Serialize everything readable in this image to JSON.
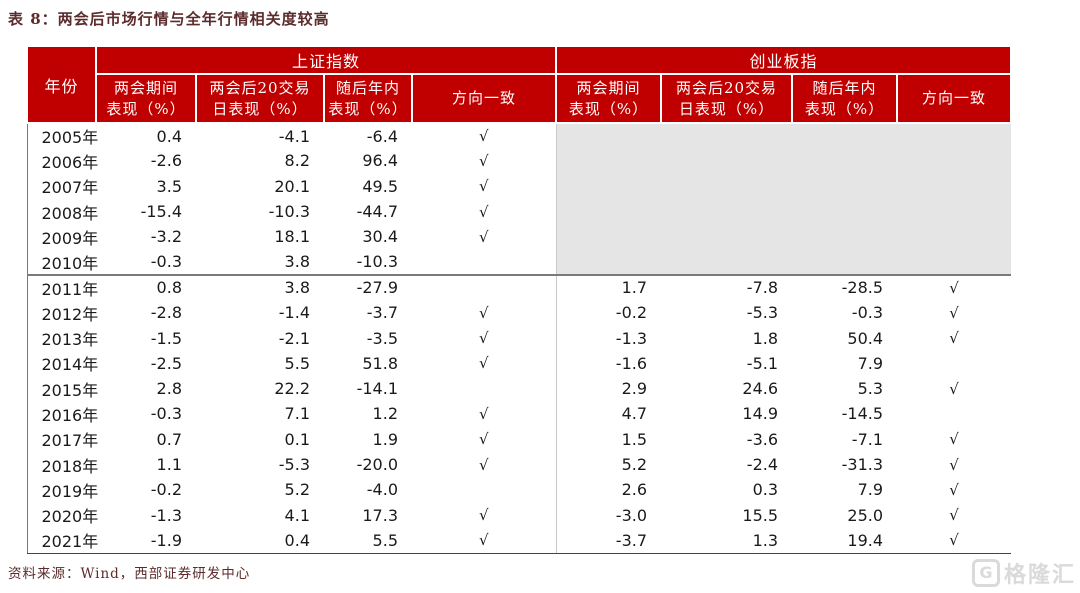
{
  "title": "表 8：两会后市场行情与全年行情相关度较高",
  "source": "资料来源：Wind，西部证券研发中心",
  "watermark": {
    "icon": "G",
    "text": "格隆汇"
  },
  "colors": {
    "header_red": "#c00000",
    "shaded_gray": "#e5e5e5",
    "title_maroon": "#5c2b2b",
    "body_text": "#1a1a1a"
  },
  "table": {
    "year_header": "年份",
    "groups": [
      {
        "label": "上证指数"
      },
      {
        "label": "创业板指"
      }
    ],
    "sub_headers": [
      {
        "line1": "两会期间",
        "line2": "表现（%）"
      },
      {
        "line1": "两会后20交易",
        "line2": "日表现（%）"
      },
      {
        "line1": "随后年内",
        "line2": "表现（%）"
      },
      {
        "line1": "方向一致",
        "line2": ""
      }
    ],
    "check_glyph": "√",
    "rows": [
      {
        "year": "2005年",
        "sh": [
          "0.4",
          "-4.1",
          "-6.4"
        ],
        "sh_dir": true,
        "cy": null
      },
      {
        "year": "2006年",
        "sh": [
          "-2.6",
          "8.2",
          "96.4"
        ],
        "sh_dir": true,
        "cy": null
      },
      {
        "year": "2007年",
        "sh": [
          "3.5",
          "20.1",
          "49.5"
        ],
        "sh_dir": true,
        "cy": null
      },
      {
        "year": "2008年",
        "sh": [
          "-15.4",
          "-10.3",
          "-44.7"
        ],
        "sh_dir": true,
        "cy": null
      },
      {
        "year": "2009年",
        "sh": [
          "-3.2",
          "18.1",
          "30.4"
        ],
        "sh_dir": true,
        "cy": null
      },
      {
        "year": "2010年",
        "sh": [
          "-0.3",
          "3.8",
          "-10.3"
        ],
        "sh_dir": false,
        "cy": null,
        "separator_below": true
      },
      {
        "year": "2011年",
        "sh": [
          "0.8",
          "3.8",
          "-27.9"
        ],
        "sh_dir": false,
        "cy": [
          "1.7",
          "-7.8",
          "-28.5"
        ],
        "cy_dir": true
      },
      {
        "year": "2012年",
        "sh": [
          "-2.8",
          "-1.4",
          "-3.7"
        ],
        "sh_dir": true,
        "cy": [
          "-0.2",
          "-5.3",
          "-0.3"
        ],
        "cy_dir": true
      },
      {
        "year": "2013年",
        "sh": [
          "-1.5",
          "-2.1",
          "-3.5"
        ],
        "sh_dir": true,
        "cy": [
          "-1.3",
          "1.8",
          "50.4"
        ],
        "cy_dir": true
      },
      {
        "year": "2014年",
        "sh": [
          "-2.5",
          "5.5",
          "51.8"
        ],
        "sh_dir": true,
        "cy": [
          "-1.6",
          "-5.1",
          "7.9"
        ],
        "cy_dir": false
      },
      {
        "year": "2015年",
        "sh": [
          "2.8",
          "22.2",
          "-14.1"
        ],
        "sh_dir": false,
        "cy": [
          "2.9",
          "24.6",
          "5.3"
        ],
        "cy_dir": true
      },
      {
        "year": "2016年",
        "sh": [
          "-0.3",
          "7.1",
          "1.2"
        ],
        "sh_dir": true,
        "cy": [
          "4.7",
          "14.9",
          "-14.5"
        ],
        "cy_dir": false
      },
      {
        "year": "2017年",
        "sh": [
          "0.7",
          "0.1",
          "1.9"
        ],
        "sh_dir": true,
        "cy": [
          "1.5",
          "-3.6",
          "-7.1"
        ],
        "cy_dir": true
      },
      {
        "year": "2018年",
        "sh": [
          "1.1",
          "-5.3",
          "-20.0"
        ],
        "sh_dir": true,
        "cy": [
          "5.2",
          "-2.4",
          "-31.3"
        ],
        "cy_dir": true
      },
      {
        "year": "2019年",
        "sh": [
          "-0.2",
          "5.2",
          "-4.0"
        ],
        "sh_dir": false,
        "cy": [
          "2.6",
          "0.3",
          "7.9"
        ],
        "cy_dir": true
      },
      {
        "year": "2020年",
        "sh": [
          "-1.3",
          "4.1",
          "17.3"
        ],
        "sh_dir": true,
        "cy": [
          "-3.0",
          "15.5",
          "25.0"
        ],
        "cy_dir": true
      },
      {
        "year": "2021年",
        "sh": [
          "-1.9",
          "0.4",
          "5.5"
        ],
        "sh_dir": true,
        "cy": [
          "-3.7",
          "1.3",
          "19.4"
        ],
        "cy_dir": true
      }
    ]
  }
}
